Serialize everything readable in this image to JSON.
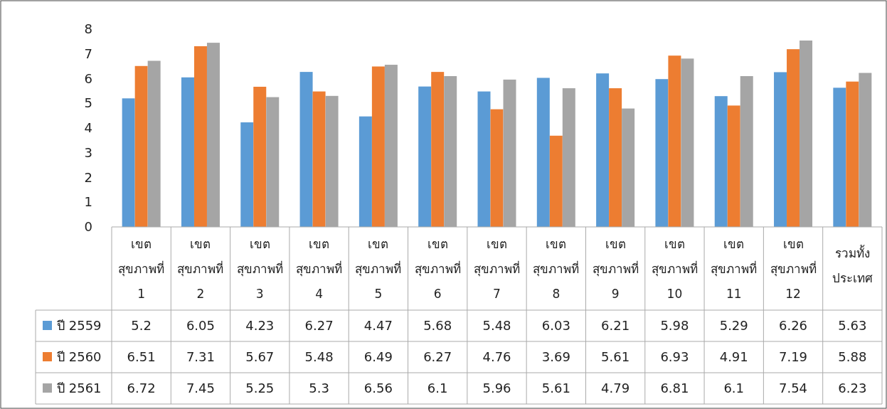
{
  "chart_data": {
    "type": "bar",
    "categories": [
      "เขต สุขภาพที่ 1",
      "เขต สุขภาพที่ 2",
      "เขต สุขภาพที่ 3",
      "เขต สุขภาพที่ 4",
      "เขต สุขภาพที่ 5",
      "เขต สุขภาพที่ 6",
      "เขต สุขภาพที่ 7",
      "เขต สุขภาพที่ 8",
      "เขต สุขภาพที่ 9",
      "เขต สุขภาพที่ 10",
      "เขต สุขภาพที่ 11",
      "เขต สุขภาพที่ 12",
      "รวมทั้ง ประเทศ"
    ],
    "series": [
      {
        "name": "ปี 2559",
        "color": "#5b9bd5",
        "values": [
          5.2,
          6.05,
          4.23,
          6.27,
          4.47,
          5.68,
          5.48,
          6.03,
          6.21,
          5.98,
          5.29,
          6.26,
          5.63
        ]
      },
      {
        "name": "ปี 2560",
        "color": "#ed7d31",
        "values": [
          6.51,
          7.31,
          5.67,
          5.48,
          6.49,
          6.27,
          4.76,
          3.69,
          5.61,
          6.93,
          4.91,
          7.19,
          5.88
        ]
      },
      {
        "name": "ปี 2561",
        "color": "#a5a5a5",
        "values": [
          6.72,
          7.45,
          5.25,
          5.3,
          6.56,
          6.1,
          5.96,
          5.61,
          4.79,
          6.81,
          6.1,
          7.54,
          6.23
        ]
      }
    ],
    "ylim": [
      0,
      8
    ],
    "yticks": [
      0,
      1,
      2,
      3,
      4,
      5,
      6,
      7,
      8
    ],
    "data_labels": true,
    "legend": "bottom",
    "grid": false
  }
}
